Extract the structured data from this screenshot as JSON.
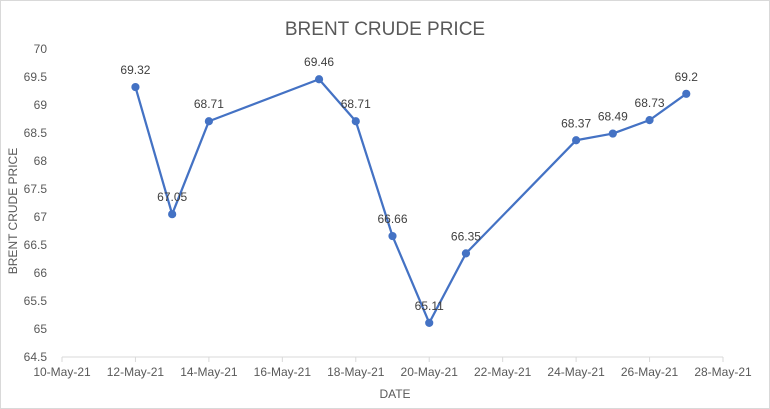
{
  "chart_data": {
    "type": "line",
    "title": "BRENT CRUDE PRICE",
    "xlabel": "DATE",
    "ylabel": "BRENT CRUDE PRICE",
    "xlim": [
      "2021-05-10",
      "2021-05-28"
    ],
    "ylim": [
      64.5,
      70
    ],
    "y_ticks": [
      "64.5",
      "65",
      "65.5",
      "66",
      "66.5",
      "67",
      "67.5",
      "68",
      "68.5",
      "69",
      "69.5",
      "70"
    ],
    "x_tick_labels": [
      "10-May-21",
      "12-May-21",
      "14-May-21",
      "16-May-21",
      "18-May-21",
      "20-May-21",
      "22-May-21",
      "24-May-21",
      "26-May-21",
      "28-May-21"
    ],
    "grid": false,
    "legend": "none",
    "color": "#4472c4",
    "series": [
      {
        "x": [
          "2021-05-12",
          "2021-05-13",
          "2021-05-14",
          "2021-05-17",
          "2021-05-18",
          "2021-05-19",
          "2021-05-20",
          "2021-05-21",
          "2021-05-24",
          "2021-05-25",
          "2021-05-26",
          "2021-05-27"
        ],
        "values": [
          69.32,
          67.05,
          68.71,
          69.46,
          68.71,
          66.66,
          65.11,
          66.35,
          68.37,
          68.49,
          68.73,
          69.2
        ],
        "labels": [
          "69.32",
          "67.05",
          "68.71",
          "69.46",
          "68.71",
          "66.66",
          "65.11",
          "66.35",
          "68.37",
          "68.49",
          "68.73",
          "69.2"
        ]
      }
    ]
  }
}
